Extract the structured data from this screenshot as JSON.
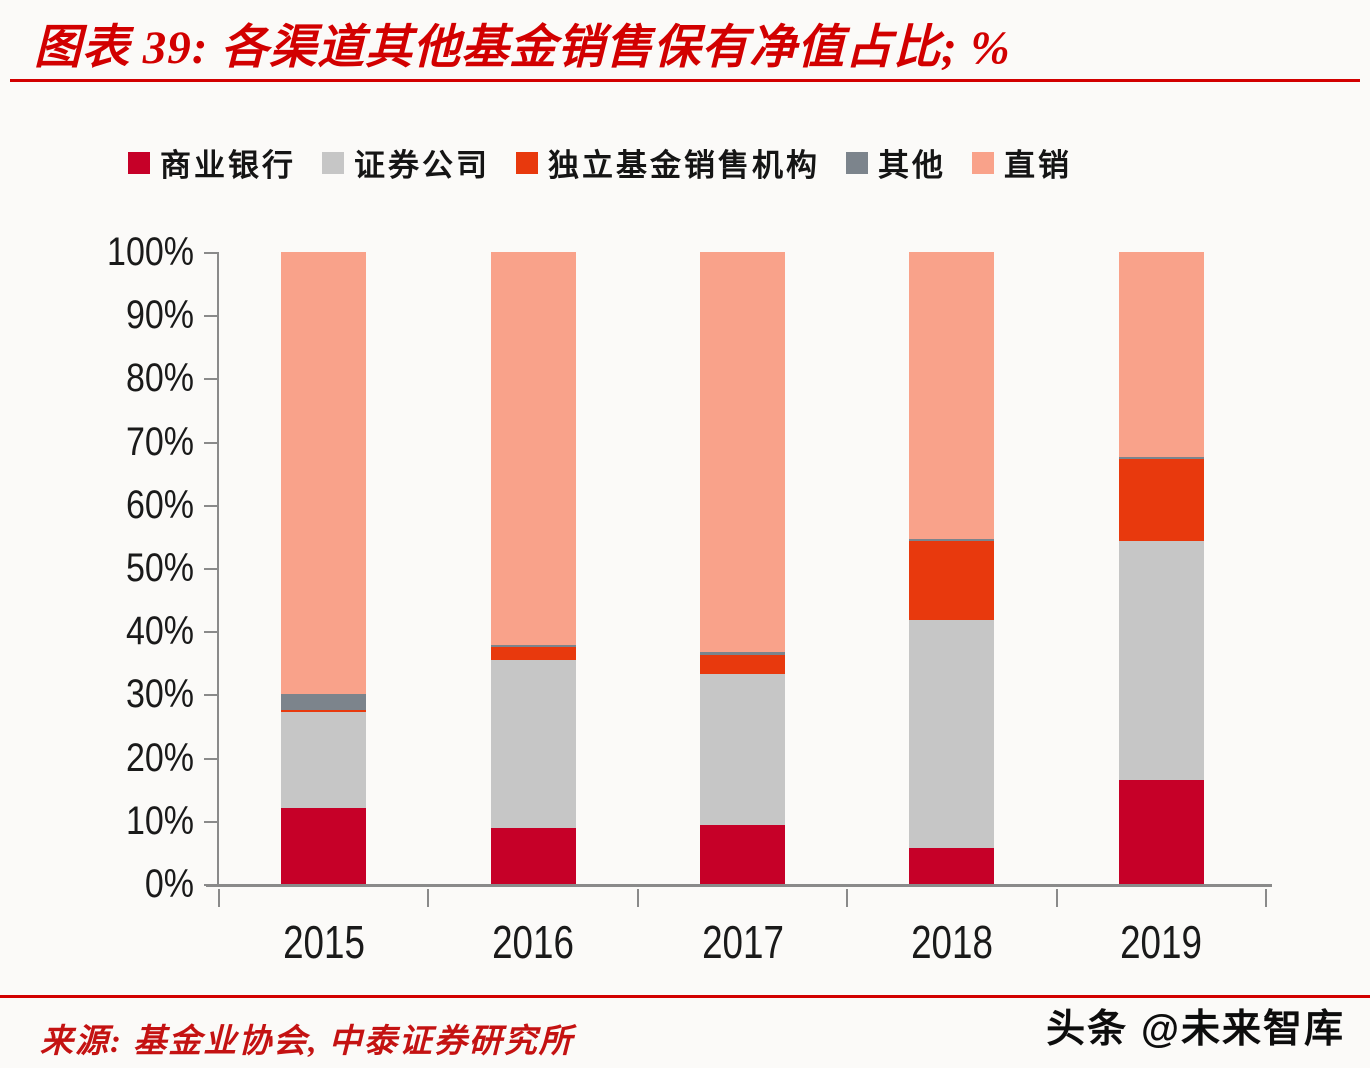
{
  "header": {
    "title": "图表 39: 各渠道其他基金销售保有净值占比; %",
    "accent_color": "#D20000"
  },
  "chart_data": {
    "type": "bar",
    "stacked": true,
    "title": "各渠道其他基金销售保有净值占比",
    "unit": "%",
    "categories": [
      "2015",
      "2016",
      "2017",
      "2018",
      "2019"
    ],
    "series": [
      {
        "name": "商业银行",
        "color": "#C60028",
        "values": [
          12.0,
          8.8,
          9.3,
          5.7,
          16.5
        ]
      },
      {
        "name": "证券公司",
        "color": "#C6C6C6",
        "values": [
          15.2,
          26.7,
          24.0,
          36.1,
          37.8
        ]
      },
      {
        "name": "独立基金销售机构",
        "color": "#E8390D",
        "values": [
          0.4,
          2.0,
          3.0,
          12.5,
          12.9
        ]
      },
      {
        "name": "其他",
        "color": "#7C848C",
        "values": [
          2.4,
          0.3,
          0.4,
          0.3,
          0.4
        ]
      },
      {
        "name": "直销",
        "color": "#F9A28A",
        "values": [
          70.0,
          62.2,
          63.3,
          45.4,
          32.4
        ]
      }
    ],
    "ylim": [
      0,
      100
    ],
    "yticks": [
      "0%",
      "10%",
      "20%",
      "30%",
      "40%",
      "50%",
      "60%",
      "70%",
      "80%",
      "90%",
      "100%"
    ],
    "grid": false,
    "legend_position": "top",
    "axis_color": "#8a8a8a"
  },
  "footer": {
    "source": "来源: 基金业协会, 中泰证券研究所",
    "source_color": "#C41212",
    "watermark": "头条 @未来智库"
  }
}
